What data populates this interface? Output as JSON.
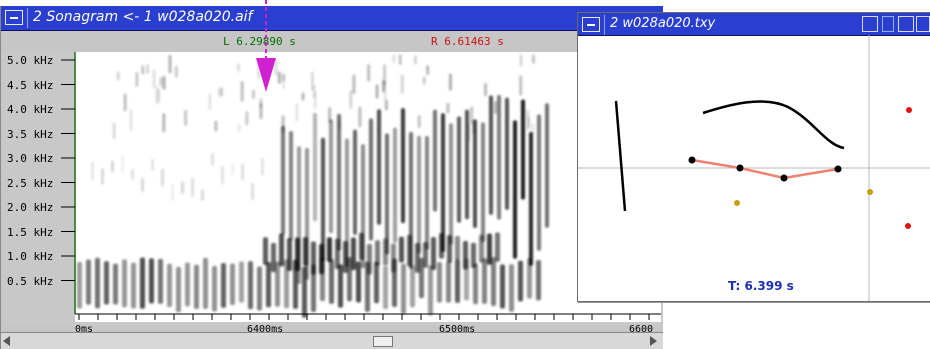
{
  "sonagram_window": {
    "title": "2 Sonagram <- 1 w028a020.aif",
    "left_cursor": "L 6.29890 s",
    "right_cursor": "R 6.61463 s",
    "y_ticks": [
      "5.0 kHz",
      "4.5 kHz",
      "4.0 kHz",
      "3.5 kHz",
      "3.0 kHz",
      "2.5 kHz",
      "2.0 kHz",
      "1.5 kHz",
      "1.0 kHz",
      "0.5 kHz"
    ],
    "x_ticks": [
      "0ms",
      "6400ms",
      "6500ms",
      "6600"
    ]
  },
  "txy_window": {
    "title": "2 w028a020.txy",
    "time_readout": "T: 6.399 s"
  },
  "colors": {
    "titlebar": "#2a3fd0",
    "marker_arrow": "#d020d0",
    "trajectory": "#f08070",
    "point_red": "#e01010",
    "point_olive": "#c8a010"
  }
}
